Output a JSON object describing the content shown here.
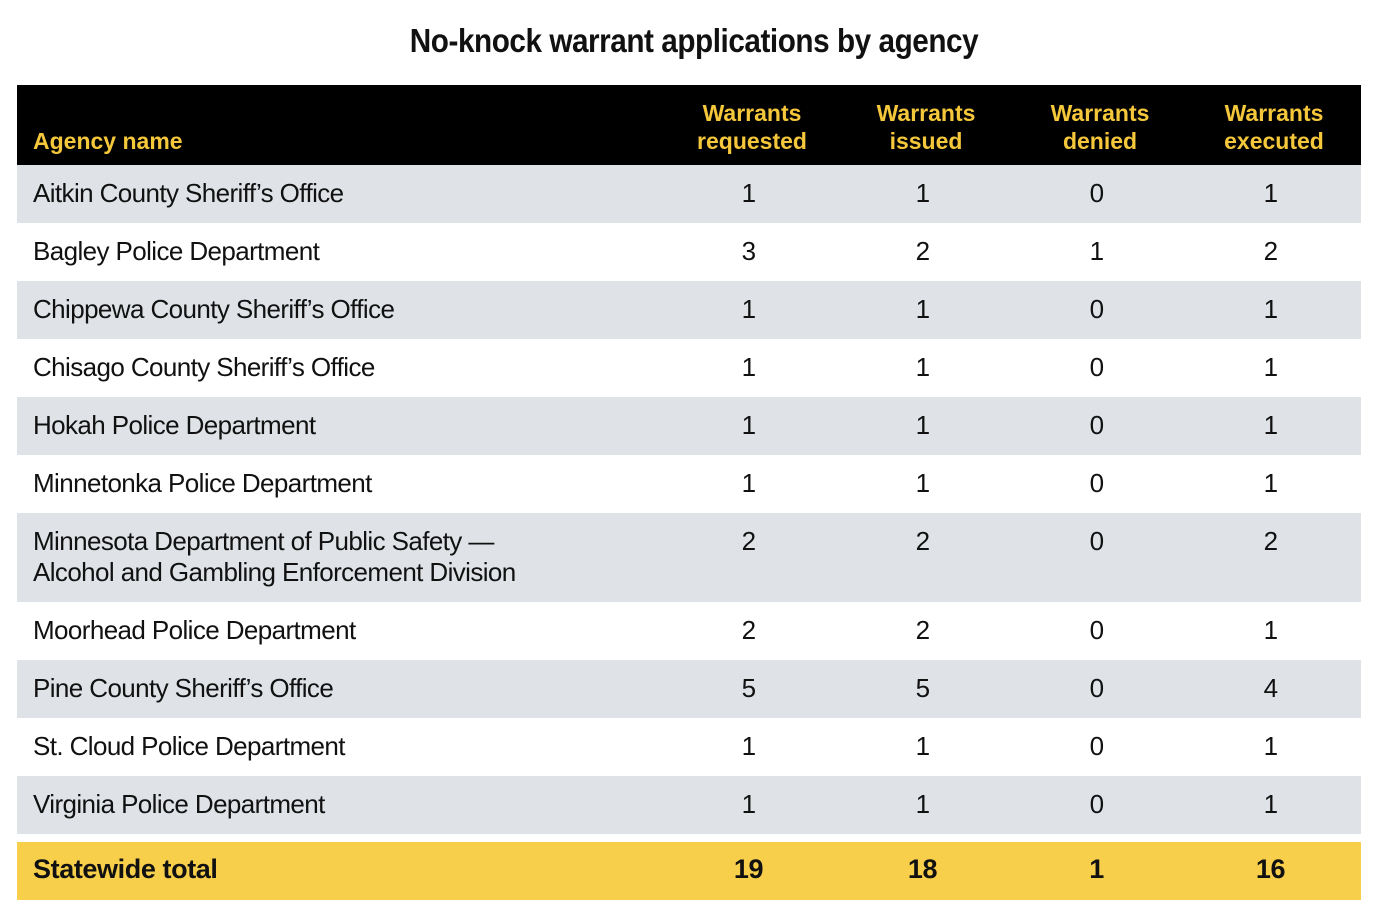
{
  "chart_data": {
    "type": "table",
    "title": "No-knock warrant applications by agency",
    "columns": [
      {
        "key": "agency",
        "label": [
          "Agency name"
        ]
      },
      {
        "key": "requested",
        "label": [
          "Warrants",
          "requested"
        ]
      },
      {
        "key": "issued",
        "label": [
          "Warrants",
          "issued"
        ]
      },
      {
        "key": "denied",
        "label": [
          "Warrants",
          "denied"
        ]
      },
      {
        "key": "executed",
        "label": [
          "Warrants",
          "executed"
        ]
      }
    ],
    "rows": [
      {
        "agency": [
          "Aitkin County Sheriff’s Office"
        ],
        "requested": 1,
        "issued": 1,
        "denied": 0,
        "executed": 1
      },
      {
        "agency": [
          "Bagley Police Department"
        ],
        "requested": 3,
        "issued": 2,
        "denied": 1,
        "executed": 2
      },
      {
        "agency": [
          "Chippewa County Sheriff’s Office"
        ],
        "requested": 1,
        "issued": 1,
        "denied": 0,
        "executed": 1
      },
      {
        "agency": [
          "Chisago County Sheriff’s Office"
        ],
        "requested": 1,
        "issued": 1,
        "denied": 0,
        "executed": 1
      },
      {
        "agency": [
          "Hokah Police Department"
        ],
        "requested": 1,
        "issued": 1,
        "denied": 0,
        "executed": 1
      },
      {
        "agency": [
          "Minnetonka Police Department"
        ],
        "requested": 1,
        "issued": 1,
        "denied": 0,
        "executed": 1
      },
      {
        "agency": [
          "Minnesota Department of Public Safety —",
          "Alcohol and Gambling Enforcement Division"
        ],
        "requested": 2,
        "issued": 2,
        "denied": 0,
        "executed": 2
      },
      {
        "agency": [
          "Moorhead Police Department"
        ],
        "requested": 2,
        "issued": 2,
        "denied": 0,
        "executed": 1
      },
      {
        "agency": [
          "Pine County Sheriff’s Office"
        ],
        "requested": 5,
        "issued": 5,
        "denied": 0,
        "executed": 4
      },
      {
        "agency": [
          "St. Cloud Police Department"
        ],
        "requested": 1,
        "issued": 1,
        "denied": 0,
        "executed": 1
      },
      {
        "agency": [
          "Virginia Police Department"
        ],
        "requested": 1,
        "issued": 1,
        "denied": 0,
        "executed": 1
      }
    ],
    "total": {
      "agency": [
        "Statewide total"
      ],
      "requested": 19,
      "issued": 18,
      "denied": 1,
      "executed": 16
    }
  },
  "colors": {
    "header_background": "#000000",
    "header_text": "#f5c73a",
    "row_shade": "#dfe3e8",
    "total_background": "#f8cf4a"
  }
}
